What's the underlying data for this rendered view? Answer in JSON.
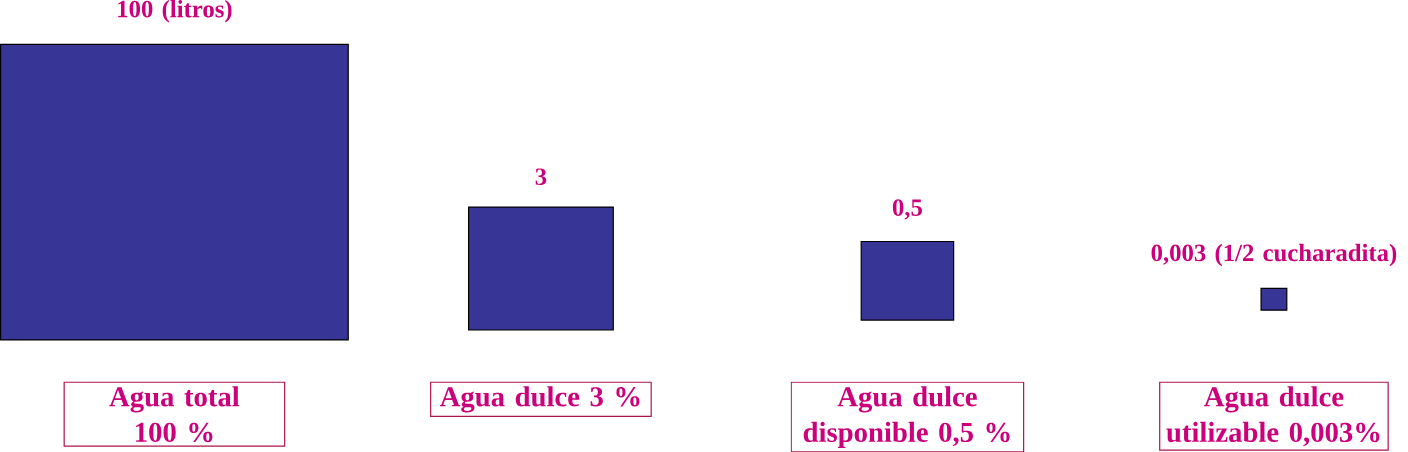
{
  "chart_data": {
    "type": "other",
    "categories": [
      "Agua total 100 %",
      "Agua dulce 3 %",
      "Agua dulce disponible 0,5 %",
      "Agua dulce utilizable 0,003%"
    ],
    "values": [
      100,
      3,
      0.5,
      0.003
    ],
    "value_labels": [
      "100 (litros)",
      "3",
      "0,5",
      "0,003 (1/2 cucharadita)"
    ],
    "color": "#373596"
  }
}
